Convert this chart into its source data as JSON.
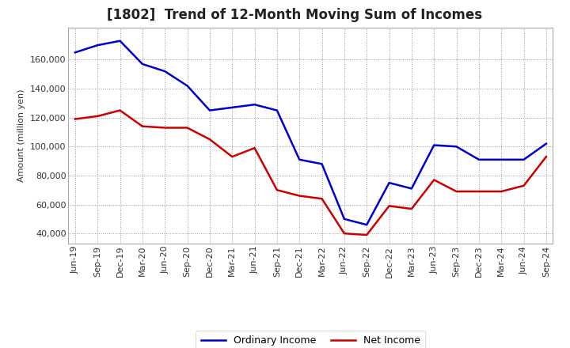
{
  "title": "[1802]  Trend of 12-Month Moving Sum of Incomes",
  "ylabel": "Amount (million yen)",
  "background_color": "#ffffff",
  "plot_bg_color": "#ffffff",
  "grid_color": "#999999",
  "ordinary_income_color": "#0000cc",
  "net_income_color": "#cc0000",
  "ordinary_income_label": "Ordinary Income",
  "net_income_label": "Net Income",
  "x_labels": [
    "Jun-19",
    "Sep-19",
    "Dec-19",
    "Mar-20",
    "Jun-20",
    "Sep-20",
    "Dec-20",
    "Mar-21",
    "Jun-21",
    "Sep-21",
    "Dec-21",
    "Mar-22",
    "Jun-22",
    "Sep-22",
    "Dec-22",
    "Mar-23",
    "Jun-23",
    "Sep-23",
    "Dec-23",
    "Mar-24",
    "Jun-24",
    "Sep-24"
  ],
  "ordinary_income": [
    165000,
    170000,
    173000,
    157000,
    152000,
    142000,
    125000,
    127000,
    129000,
    125000,
    91000,
    88000,
    50000,
    46000,
    75000,
    71000,
    101000,
    100000,
    91000,
    91000,
    91000,
    102000
  ],
  "net_income": [
    119000,
    121000,
    125000,
    114000,
    113000,
    113000,
    105000,
    93000,
    99000,
    70000,
    66000,
    64000,
    40000,
    39000,
    59000,
    57000,
    77000,
    69000,
    69000,
    69000,
    73000,
    93000
  ],
  "ylim": [
    33000,
    182000
  ],
  "yticks": [
    40000,
    60000,
    80000,
    100000,
    120000,
    140000,
    160000
  ],
  "title_fontsize": 12,
  "axis_fontsize": 8,
  "legend_fontsize": 9,
  "line_width": 1.8
}
